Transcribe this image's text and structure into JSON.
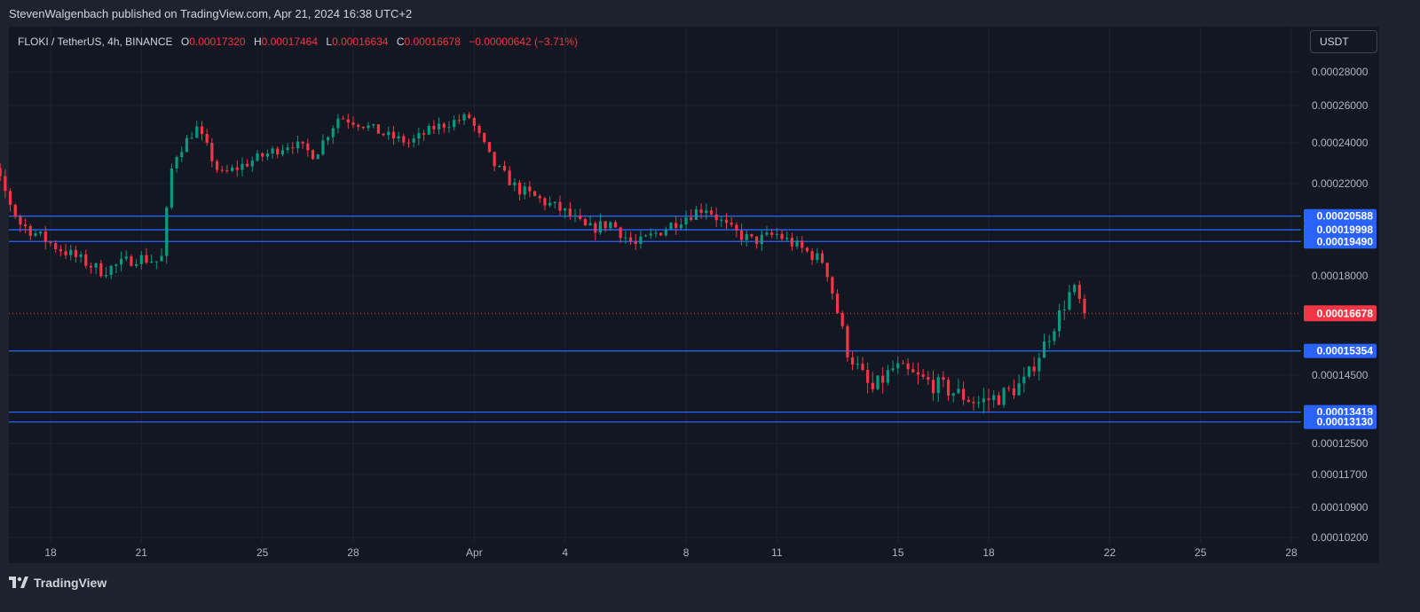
{
  "header": {
    "publisher": "StevenWalgenbach published on TradingView.com, Apr 21, 2024 16:38 UTC+2"
  },
  "legend": {
    "symbol": "FLOKI / TetherUS, 4h, BINANCE",
    "o_label": "O",
    "o": "0.00017320",
    "h_label": "H",
    "h": "0.00017464",
    "l_label": "L",
    "l": "0.00016634",
    "c_label": "C",
    "c": "0.00016678",
    "change": "−0.00000642 (−3.71%)"
  },
  "currency": "USDT",
  "brand": "TradingView",
  "colors": {
    "up": "#089981",
    "down": "#f23645",
    "level": "#2962ff",
    "price": "#f23645",
    "bg": "#131722"
  },
  "chart_data": {
    "type": "candlestick",
    "xlabels": [
      "18",
      "21",
      "25",
      "28",
      "Apr",
      "4",
      "8",
      "11",
      "15",
      "18",
      "22",
      "25",
      "28"
    ],
    "x_dates": [
      "2024-03-18",
      "2024-03-21",
      "2024-03-25",
      "2024-03-28",
      "2024-04-01",
      "2024-04-04",
      "2024-04-08",
      "2024-04-11",
      "2024-04-15",
      "2024-04-18",
      "2024-04-22",
      "2024-04-25",
      "2024-04-28"
    ],
    "yticks": [
      "0.00028000",
      "0.00026000",
      "0.00024000",
      "0.00022000",
      "0.00018000",
      "0.00014500",
      "0.00012500",
      "0.00011700",
      "0.00010900",
      "0.00010200"
    ],
    "ylim": [
      0.000102,
      0.000285
    ],
    "horizontal_levels": [
      "0.00020588",
      "0.00019998",
      "0.00019490",
      "0.00015354",
      "0.00013419",
      "0.00013130"
    ],
    "last_price": "0.00016678",
    "price_path": [
      [
        0,
        0.000212
      ],
      [
        3,
        0.000226
      ],
      [
        5,
        0.000203
      ],
      [
        8,
        0.000193
      ],
      [
        12,
        0.000182
      ],
      [
        15,
        0.000188
      ],
      [
        17,
        0.000186
      ],
      [
        18,
        0.000232
      ],
      [
        20,
        0.000248
      ],
      [
        22,
        0.000224
      ],
      [
        25,
        0.000232
      ],
      [
        28,
        0.00024
      ],
      [
        30,
        0.000234
      ],
      [
        32,
        0.000254
      ],
      [
        34,
        0.00025
      ],
      [
        36,
        0.000244
      ],
      [
        38,
        0.00024
      ],
      [
        40,
        0.000248
      ],
      [
        43,
        0.000254
      ],
      [
        45,
        0.00023
      ],
      [
        47,
        0.000218
      ],
      [
        49,
        0.000213
      ],
      [
        51,
        0.000208
      ],
      [
        53,
        0.0002
      ],
      [
        55,
        0.000203
      ],
      [
        57,
        0.000193
      ],
      [
        59,
        0.000199
      ],
      [
        61,
        0.000205
      ],
      [
        63,
        0.00021
      ],
      [
        65,
        0.0002
      ],
      [
        67,
        0.000195
      ],
      [
        69,
        0.000198
      ],
      [
        71,
        0.000192
      ],
      [
        73,
        0.000186
      ],
      [
        75,
        0.000153
      ],
      [
        77,
        0.00014
      ],
      [
        79,
        0.000148
      ],
      [
        81,
        0.000144
      ],
      [
        84,
        0.00014
      ],
      [
        86,
        0.000137
      ],
      [
        88,
        0.000139
      ],
      [
        90,
        0.000143
      ],
      [
        92,
        0.000159
      ],
      [
        94,
        0.000176
      ],
      [
        95,
        0.000167
      ]
    ]
  }
}
